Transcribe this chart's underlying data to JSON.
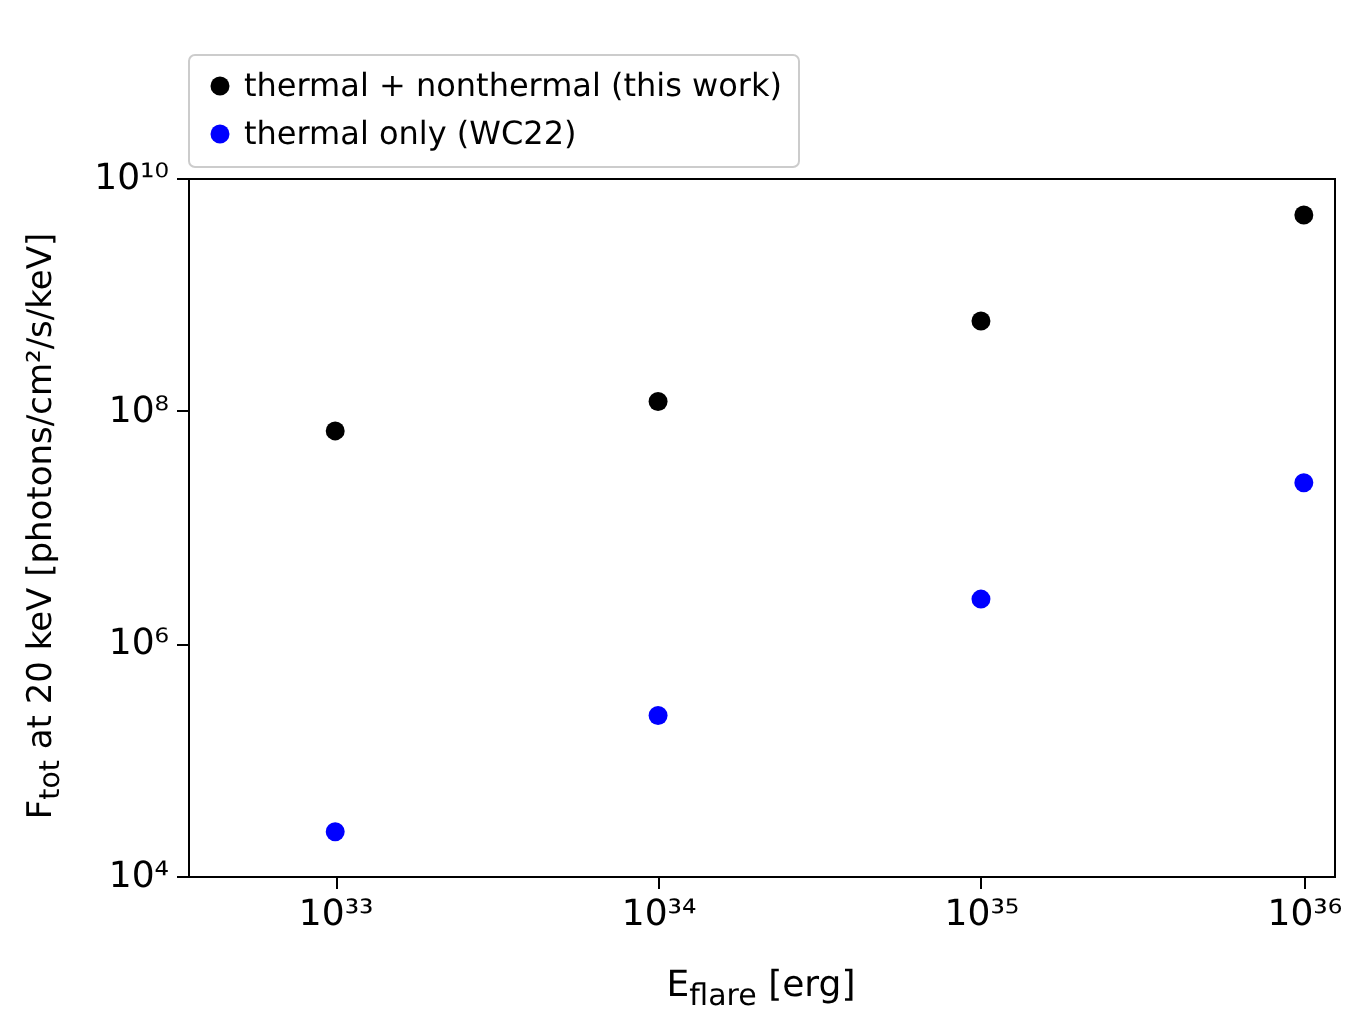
{
  "chart_data": {
    "type": "scatter",
    "xlabel": "E$_{flare}$ [erg]",
    "ylabel": "F$_{tot}$ at 20 keV [photons/cm²/s/keV]",
    "x": [
      1e+33,
      1e+34,
      1e+35,
      1e+36
    ],
    "series": [
      {
        "name": "thermal + nonthermal (this work)",
        "color": "#000000",
        "values": [
          67000000.0,
          120000000.0,
          590000000.0,
          4800000000.0
        ]
      },
      {
        "name": "thermal only (WC22)",
        "color": "#0000ff",
        "values": [
          24000.0,
          240000.0,
          2400000.0,
          24000000.0
        ]
      }
    ],
    "log": "xy",
    "xlim": [
      3.5e+32,
      1.24e+36
    ],
    "ylim": [
      10000.0,
      10000000000.0
    ],
    "xticks": [
      {
        "value": 1e+33,
        "label": "10³³"
      },
      {
        "value": 1e+34,
        "label": "10³⁴"
      },
      {
        "value": 1e+35,
        "label": "10³⁵"
      },
      {
        "value": 1e+36,
        "label": "10³⁶"
      }
    ],
    "yticks": [
      {
        "value": 10000.0,
        "label": "10⁴"
      },
      {
        "value": 1000000.0,
        "label": "10⁶"
      },
      {
        "value": 100000000.0,
        "label": "10⁸"
      },
      {
        "value": 10000000000.0,
        "label": "10¹⁰"
      }
    ],
    "grid": false,
    "legend": "top",
    "marker": "circle"
  }
}
